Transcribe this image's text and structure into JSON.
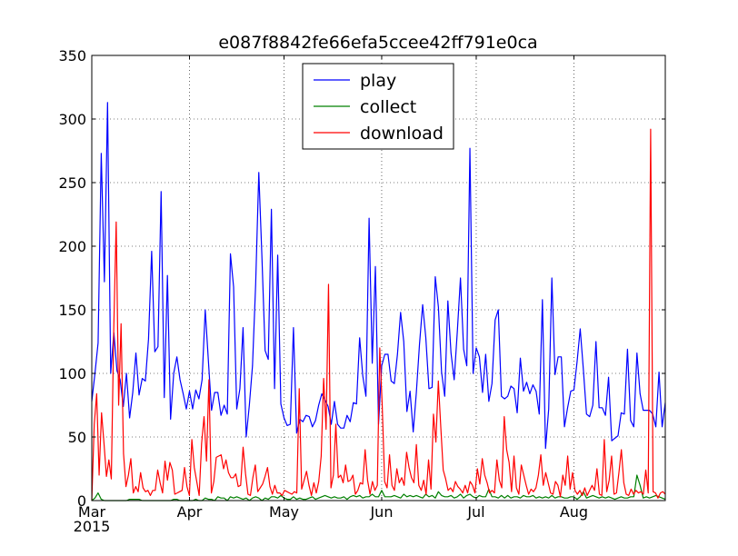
{
  "chart_data": {
    "type": "line",
    "title": "e087f8842fe66efa5ccee42ff791e0ca",
    "xlabel": "",
    "ylabel": "",
    "x_start": "2015-03-01",
    "x_end": "2015-08-30",
    "xlim": [
      "2015-03-01",
      "2015-08-30"
    ],
    "ylim": [
      0,
      350
    ],
    "yticks": [
      0,
      50,
      100,
      150,
      200,
      250,
      300,
      350
    ],
    "xticks": [
      {
        "date": "2015-03-01",
        "label": "Mar",
        "sublabel": "2015"
      },
      {
        "date": "2015-04-01",
        "label": "Apr",
        "sublabel": ""
      },
      {
        "date": "2015-05-01",
        "label": "May",
        "sublabel": ""
      },
      {
        "date": "2015-06-01",
        "label": "Jun",
        "sublabel": ""
      },
      {
        "date": "2015-07-01",
        "label": "Jul",
        "sublabel": ""
      },
      {
        "date": "2015-08-01",
        "label": "Aug",
        "sublabel": ""
      }
    ],
    "grid": true,
    "legend_position": "top-center",
    "series": [
      {
        "name": "play",
        "color": "#0000ff",
        "values": [
          78,
          100,
          124,
          273,
          172,
          313,
          100,
          132,
          102,
          95,
          74,
          100,
          65,
          85,
          116,
          83,
          96,
          94,
          127,
          196,
          117,
          121,
          243,
          81,
          177,
          64,
          100,
          113,
          95,
          84,
          72,
          86,
          72,
          87,
          80,
          95,
          150,
          110,
          71,
          85,
          85,
          67,
          75,
          68,
          194,
          168,
          72,
          88,
          136,
          50,
          75,
          106,
          170,
          258,
          191,
          118,
          111,
          229,
          88,
          193,
          76,
          65,
          59,
          60,
          136,
          53,
          64,
          62,
          67,
          66,
          58,
          63,
          75,
          84,
          79,
          74,
          60,
          78,
          60,
          57,
          57,
          67,
          62,
          77,
          76,
          128,
          98,
          82,
          222,
          108,
          184,
          60,
          106,
          115,
          115,
          94,
          92,
          115,
          148,
          125,
          70,
          86,
          54,
          85,
          123,
          154,
          128,
          88,
          89,
          176,
          152,
          101,
          82,
          157,
          116,
          95,
          133,
          175,
          119,
          106,
          277,
          100,
          120,
          113,
          85,
          115,
          78,
          92,
          142,
          150,
          82,
          80,
          82,
          90,
          88,
          69,
          112,
          86,
          93,
          84,
          91,
          86,
          68,
          158,
          41,
          72,
          175,
          99,
          113,
          113,
          58,
          73,
          86,
          87,
          109,
          135,
          103,
          68,
          66,
          75,
          125,
          73,
          73,
          67,
          97,
          47,
          49,
          51,
          69,
          68,
          119,
          63,
          58,
          116,
          84,
          71,
          71,
          71,
          68,
          58,
          101,
          58,
          77
        ]
      },
      {
        "name": "collect",
        "color": "#008000",
        "values": [
          0,
          2,
          6,
          1,
          0,
          0,
          0,
          0,
          0,
          0,
          0,
          0,
          1,
          1,
          1,
          1,
          0,
          0,
          0,
          0,
          0,
          0,
          0,
          0,
          0,
          0,
          1,
          1,
          0,
          0,
          0,
          0,
          0,
          1,
          0,
          0,
          2,
          1,
          1,
          0,
          3,
          2,
          2,
          0,
          3,
          2,
          3,
          2,
          1,
          2,
          0,
          2,
          3,
          2,
          0,
          2,
          1,
          3,
          3,
          2,
          4,
          2,
          1,
          1,
          3,
          1,
          2,
          1,
          1,
          2,
          3,
          1,
          2,
          3,
          4,
          3,
          2,
          3,
          2,
          2,
          3,
          1,
          3,
          4,
          3,
          4,
          2,
          3,
          3,
          5,
          3,
          3,
          8,
          3,
          3,
          3,
          4,
          3,
          2,
          5,
          3,
          4,
          3,
          4,
          3,
          2,
          5,
          3,
          4,
          2,
          7,
          4,
          3,
          3,
          4,
          2,
          3,
          5,
          2,
          4,
          5,
          3,
          2,
          4,
          3,
          3,
          9,
          3,
          3,
          2,
          4,
          2,
          4,
          2,
          3,
          3,
          2,
          4,
          3,
          3,
          4,
          2,
          3,
          2,
          3,
          2,
          4,
          2,
          3,
          3,
          2,
          2,
          3,
          3,
          1,
          3,
          7,
          2,
          3,
          4,
          3,
          2,
          3,
          2,
          3,
          2,
          1,
          2,
          3,
          2,
          2,
          3,
          3,
          20,
          12,
          2,
          3,
          2,
          3,
          4,
          3,
          2,
          1
        ]
      },
      {
        "name": "download",
        "color": "#ff0000",
        "values": [
          0,
          60,
          84,
          20,
          69,
          45,
          19,
          32,
          17,
          135,
          219,
          75,
          139,
          37,
          11,
          20,
          33,
          6,
          11,
          7,
          22,
          10,
          7,
          8,
          4,
          8,
          8,
          24,
          14,
          6,
          31,
          16,
          30,
          24,
          5,
          6,
          7,
          8,
          26,
          11,
          4,
          48,
          26,
          15,
          4,
          45,
          66,
          31,
          95,
          6,
          15,
          34,
          35,
          36,
          25,
          32,
          22,
          18,
          18,
          21,
          11,
          12,
          42,
          21,
          5,
          4,
          18,
          28,
          7,
          10,
          13,
          19,
          26,
          11,
          5,
          12,
          6,
          6,
          4,
          8,
          7,
          6,
          5,
          7,
          6,
          88,
          9,
          16,
          23,
          12,
          4,
          14,
          6,
          15,
          35,
          96,
          56,
          170,
          10,
          20,
          60,
          18,
          20,
          14,
          28,
          15,
          16,
          20,
          5,
          8,
          14,
          13,
          40,
          16,
          5,
          15,
          8,
          12,
          120,
          75,
          15,
          10,
          36,
          12,
          8,
          25,
          14,
          18,
          12,
          38,
          26,
          18,
          14,
          44,
          12,
          8,
          16,
          5,
          32,
          9,
          68,
          46,
          94,
          58,
          24,
          17,
          8,
          10,
          7,
          15,
          11,
          9,
          6,
          12,
          6,
          15,
          12,
          6,
          25,
          13,
          33,
          20,
          14,
          6,
          8,
          6,
          32,
          16,
          10,
          66,
          40,
          30,
          7,
          35,
          10,
          5,
          28,
          20,
          12,
          5,
          9,
          7,
          10,
          20,
          36,
          12,
          22,
          14,
          6,
          5,
          15,
          12,
          3,
          20,
          12,
          35,
          9,
          22,
          8,
          5,
          8,
          4,
          10,
          4,
          8,
          12,
          8,
          25,
          5,
          4,
          48,
          7,
          16,
          35,
          5,
          6,
          22,
          40,
          14,
          5,
          4,
          9,
          5,
          8,
          6,
          7,
          5,
          24,
          6,
          292,
          7,
          6,
          2,
          6,
          7,
          5
        ]
      }
    ]
  }
}
